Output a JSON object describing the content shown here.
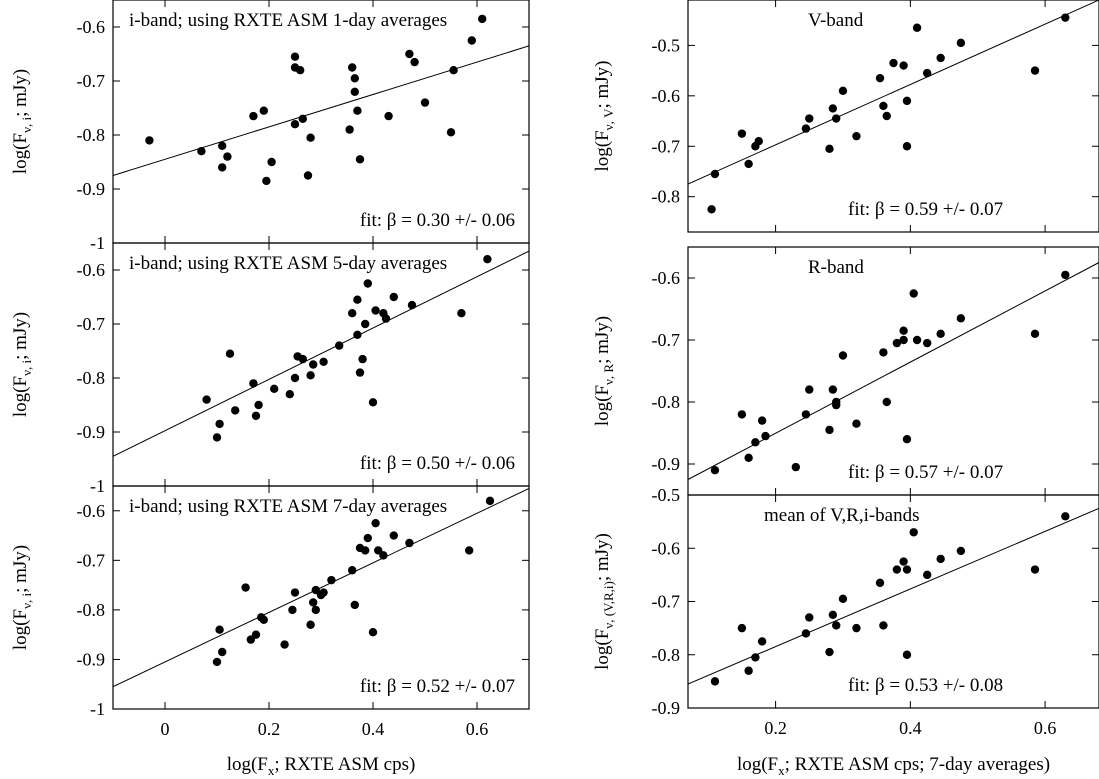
{
  "chart_data": [
    {
      "type": "scatter",
      "title": "i-band; using RXTE ASM 1-day averages",
      "fit_label": "fit: β = 0.30 +/- 0.06",
      "ylabel": {
        "main": "log(F",
        "sub": "ν, i",
        "end": "; mJy)"
      },
      "xlabel": "",
      "xlim": [
        -0.1,
        0.7
      ],
      "ylim": [
        -1.0,
        -0.55
      ],
      "x_ticks": [],
      "y_ticks": [
        "-1",
        "-0.9",
        "-0.8",
        "-0.7",
        "-0.6"
      ],
      "fit_line": {
        "x": [
          -0.1,
          0.7
        ],
        "y": [
          -0.875,
          -0.635
        ]
      },
      "points": [
        [
          -0.03,
          -0.81
        ],
        [
          0.07,
          -0.83
        ],
        [
          0.11,
          -0.82
        ],
        [
          0.11,
          -0.86
        ],
        [
          0.12,
          -0.84
        ],
        [
          0.17,
          -0.765
        ],
        [
          0.19,
          -0.755
        ],
        [
          0.195,
          -0.885
        ],
        [
          0.205,
          -0.85
        ],
        [
          0.25,
          -0.78
        ],
        [
          0.25,
          -0.675
        ],
        [
          0.25,
          -0.655
        ],
        [
          0.26,
          -0.68
        ],
        [
          0.265,
          -0.77
        ],
        [
          0.275,
          -0.875
        ],
        [
          0.28,
          -0.805
        ],
        [
          0.355,
          -0.79
        ],
        [
          0.36,
          -0.675
        ],
        [
          0.365,
          -0.72
        ],
        [
          0.365,
          -0.695
        ],
        [
          0.37,
          -0.755
        ],
        [
          0.375,
          -0.845
        ],
        [
          0.43,
          -0.765
        ],
        [
          0.47,
          -0.65
        ],
        [
          0.48,
          -0.665
        ],
        [
          0.5,
          -0.74
        ],
        [
          0.55,
          -0.795
        ],
        [
          0.555,
          -0.68
        ],
        [
          0.59,
          -0.625
        ],
        [
          0.61,
          -0.585
        ]
      ]
    },
    {
      "type": "scatter",
      "title": "i-band; using RXTE ASM 5-day averages",
      "fit_label": "fit: β = 0.50 +/- 0.06",
      "ylabel": {
        "main": "log(F",
        "sub": "ν, i",
        "end": "; mJy)"
      },
      "xlabel": "",
      "xlim": [
        -0.1,
        0.7
      ],
      "ylim": [
        -1.0,
        -0.55
      ],
      "x_ticks": [],
      "y_ticks": [
        "-1",
        "-0.9",
        "-0.8",
        "-0.7",
        "-0.6"
      ],
      "fit_line": {
        "x": [
          -0.1,
          0.7
        ],
        "y": [
          -0.945,
          -0.565
        ]
      },
      "points": [
        [
          0.08,
          -0.84
        ],
        [
          0.1,
          -0.91
        ],
        [
          0.105,
          -0.885
        ],
        [
          0.125,
          -0.755
        ],
        [
          0.135,
          -0.86
        ],
        [
          0.17,
          -0.81
        ],
        [
          0.175,
          -0.87
        ],
        [
          0.18,
          -0.85
        ],
        [
          0.21,
          -0.82
        ],
        [
          0.24,
          -0.83
        ],
        [
          0.25,
          -0.8
        ],
        [
          0.255,
          -0.76
        ],
        [
          0.265,
          -0.765
        ],
        [
          0.28,
          -0.795
        ],
        [
          0.285,
          -0.775
        ],
        [
          0.305,
          -0.77
        ],
        [
          0.335,
          -0.74
        ],
        [
          0.36,
          -0.68
        ],
        [
          0.37,
          -0.655
        ],
        [
          0.37,
          -0.72
        ],
        [
          0.375,
          -0.79
        ],
        [
          0.38,
          -0.765
        ],
        [
          0.385,
          -0.7
        ],
        [
          0.39,
          -0.625
        ],
        [
          0.4,
          -0.845
        ],
        [
          0.405,
          -0.675
        ],
        [
          0.42,
          -0.68
        ],
        [
          0.425,
          -0.69
        ],
        [
          0.44,
          -0.65
        ],
        [
          0.475,
          -0.665
        ],
        [
          0.57,
          -0.68
        ],
        [
          0.62,
          -0.58
        ]
      ]
    },
    {
      "type": "scatter",
      "title": "i-band; using RXTE ASM 7-day averages",
      "fit_label": "fit: β = 0.52 +/- 0.07",
      "ylabel": {
        "main": "log(F",
        "sub": "ν, i",
        "end": "; mJy)"
      },
      "xlabel": {
        "main": "log(F",
        "sub": "x",
        "end": "; RXTE ASM cps)"
      },
      "xlim": [
        -0.1,
        0.7
      ],
      "ylim": [
        -1.0,
        -0.55
      ],
      "x_ticks": [
        "0",
        "0.2",
        "0.4",
        "0.6"
      ],
      "y_ticks": [
        "-1",
        "-0.9",
        "-0.8",
        "-0.7",
        "-0.6"
      ],
      "fit_line": {
        "x": [
          -0.1,
          0.7
        ],
        "y": [
          -0.955,
          -0.555
        ]
      },
      "points": [
        [
          0.1,
          -0.905
        ],
        [
          0.105,
          -0.84
        ],
        [
          0.11,
          -0.885
        ],
        [
          0.155,
          -0.755
        ],
        [
          0.165,
          -0.86
        ],
        [
          0.175,
          -0.85
        ],
        [
          0.185,
          -0.815
        ],
        [
          0.19,
          -0.82
        ],
        [
          0.23,
          -0.87
        ],
        [
          0.245,
          -0.8
        ],
        [
          0.25,
          -0.765
        ],
        [
          0.28,
          -0.83
        ],
        [
          0.285,
          -0.785
        ],
        [
          0.29,
          -0.8
        ],
        [
          0.29,
          -0.76
        ],
        [
          0.3,
          -0.77
        ],
        [
          0.305,
          -0.765
        ],
        [
          0.32,
          -0.74
        ],
        [
          0.36,
          -0.72
        ],
        [
          0.365,
          -0.79
        ],
        [
          0.375,
          -0.675
        ],
        [
          0.385,
          -0.68
        ],
        [
          0.39,
          -0.655
        ],
        [
          0.4,
          -0.845
        ],
        [
          0.405,
          -0.625
        ],
        [
          0.41,
          -0.68
        ],
        [
          0.42,
          -0.69
        ],
        [
          0.44,
          -0.65
        ],
        [
          0.47,
          -0.665
        ],
        [
          0.585,
          -0.68
        ],
        [
          0.625,
          -0.58
        ]
      ]
    },
    {
      "type": "scatter",
      "title": "V-band",
      "fit_label": "fit: β = 0.59 +/- 0.07",
      "ylabel": {
        "main": "log(F",
        "sub": "ν, V",
        "end": "; mJy)"
      },
      "xlabel": "",
      "xlim": [
        0.07,
        0.68
      ],
      "ylim": [
        -0.87,
        -0.41
      ],
      "x_ticks": [],
      "y_ticks": [
        "-0.8",
        "-0.7",
        "-0.6",
        "-0.5"
      ],
      "fit_line": {
        "x": [
          0.07,
          0.68
        ],
        "y": [
          -0.775,
          -0.41
        ]
      },
      "points": [
        [
          0.105,
          -0.825
        ],
        [
          0.11,
          -0.755
        ],
        [
          0.15,
          -0.675
        ],
        [
          0.16,
          -0.735
        ],
        [
          0.17,
          -0.7
        ],
        [
          0.175,
          -0.69
        ],
        [
          0.245,
          -0.665
        ],
        [
          0.25,
          -0.645
        ],
        [
          0.28,
          -0.705
        ],
        [
          0.285,
          -0.625
        ],
        [
          0.29,
          -0.645
        ],
        [
          0.3,
          -0.59
        ],
        [
          0.32,
          -0.68
        ],
        [
          0.355,
          -0.565
        ],
        [
          0.36,
          -0.62
        ],
        [
          0.365,
          -0.64
        ],
        [
          0.375,
          -0.535
        ],
        [
          0.39,
          -0.54
        ],
        [
          0.395,
          -0.61
        ],
        [
          0.395,
          -0.7
        ],
        [
          0.41,
          -0.465
        ],
        [
          0.425,
          -0.555
        ],
        [
          0.445,
          -0.525
        ],
        [
          0.475,
          -0.495
        ],
        [
          0.585,
          -0.55
        ],
        [
          0.63,
          -0.445
        ]
      ]
    },
    {
      "type": "scatter",
      "title": "R-band",
      "fit_label": "fit: β = 0.57 +/- 0.07",
      "ylabel": {
        "main": "log(F",
        "sub": "ν, R",
        "end": "; mJy)"
      },
      "xlabel": "",
      "xlim": [
        0.07,
        0.68
      ],
      "ylim": [
        -0.95,
        -0.55
      ],
      "x_ticks": [],
      "y_ticks": [
        "-0.9",
        "-0.8",
        "-0.7",
        "-0.6"
      ],
      "fit_line": {
        "x": [
          0.07,
          0.68
        ],
        "y": [
          -0.925,
          -0.575
        ]
      },
      "points": [
        [
          0.11,
          -0.91
        ],
        [
          0.15,
          -0.82
        ],
        [
          0.16,
          -0.89
        ],
        [
          0.17,
          -0.865
        ],
        [
          0.18,
          -0.83
        ],
        [
          0.185,
          -0.855
        ],
        [
          0.23,
          -0.905
        ],
        [
          0.245,
          -0.82
        ],
        [
          0.25,
          -0.78
        ],
        [
          0.28,
          -0.845
        ],
        [
          0.285,
          -0.78
        ],
        [
          0.29,
          -0.8
        ],
        [
          0.29,
          -0.805
        ],
        [
          0.3,
          -0.725
        ],
        [
          0.32,
          -0.835
        ],
        [
          0.36,
          -0.72
        ],
        [
          0.365,
          -0.8
        ],
        [
          0.38,
          -0.705
        ],
        [
          0.39,
          -0.7
        ],
        [
          0.39,
          -0.685
        ],
        [
          0.395,
          -0.86
        ],
        [
          0.405,
          -0.625
        ],
        [
          0.41,
          -0.7
        ],
        [
          0.425,
          -0.705
        ],
        [
          0.445,
          -0.69
        ],
        [
          0.475,
          -0.665
        ],
        [
          0.585,
          -0.69
        ],
        [
          0.63,
          -0.595
        ]
      ]
    },
    {
      "type": "scatter",
      "title": "mean of V,R,i-bands",
      "fit_label": "fit: β = 0.53 +/- 0.08",
      "ylabel": {
        "main": "log(F",
        "sub": "ν, (V,R,i)",
        "end": "; mJy)"
      },
      "xlabel": {
        "main": "log(F",
        "sub": "x",
        "end": "; RXTE ASM cps; 7-day averages)"
      },
      "xlim": [
        0.07,
        0.68
      ],
      "ylim": [
        -0.9,
        -0.5
      ],
      "x_ticks": [
        "0.2",
        "0.4",
        "0.6"
      ],
      "y_ticks": [
        "-0.9",
        "-0.8",
        "-0.7",
        "-0.6",
        "-0.5"
      ],
      "fit_line": {
        "x": [
          0.07,
          0.68
        ],
        "y": [
          -0.855,
          -0.525
        ]
      },
      "points": [
        [
          0.11,
          -0.85
        ],
        [
          0.15,
          -0.75
        ],
        [
          0.16,
          -0.83
        ],
        [
          0.17,
          -0.805
        ],
        [
          0.18,
          -0.775
        ],
        [
          0.245,
          -0.76
        ],
        [
          0.25,
          -0.73
        ],
        [
          0.28,
          -0.795
        ],
        [
          0.285,
          -0.725
        ],
        [
          0.29,
          -0.745
        ],
        [
          0.3,
          -0.695
        ],
        [
          0.32,
          -0.75
        ],
        [
          0.355,
          -0.665
        ],
        [
          0.36,
          -0.745
        ],
        [
          0.38,
          -0.64
        ],
        [
          0.39,
          -0.625
        ],
        [
          0.395,
          -0.64
        ],
        [
          0.395,
          -0.8
        ],
        [
          0.405,
          -0.57
        ],
        [
          0.425,
          -0.65
        ],
        [
          0.445,
          -0.62
        ],
        [
          0.475,
          -0.605
        ],
        [
          0.585,
          -0.64
        ],
        [
          0.63,
          -0.54
        ]
      ]
    }
  ]
}
